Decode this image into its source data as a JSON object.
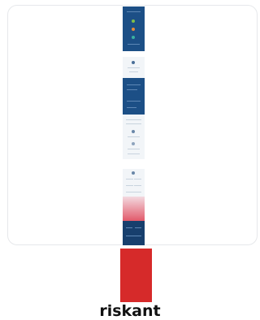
{
  "result": {
    "label": "riskant",
    "level_color": "#d62a2a"
  },
  "preview": {
    "primary_color": "#1c4f86"
  }
}
